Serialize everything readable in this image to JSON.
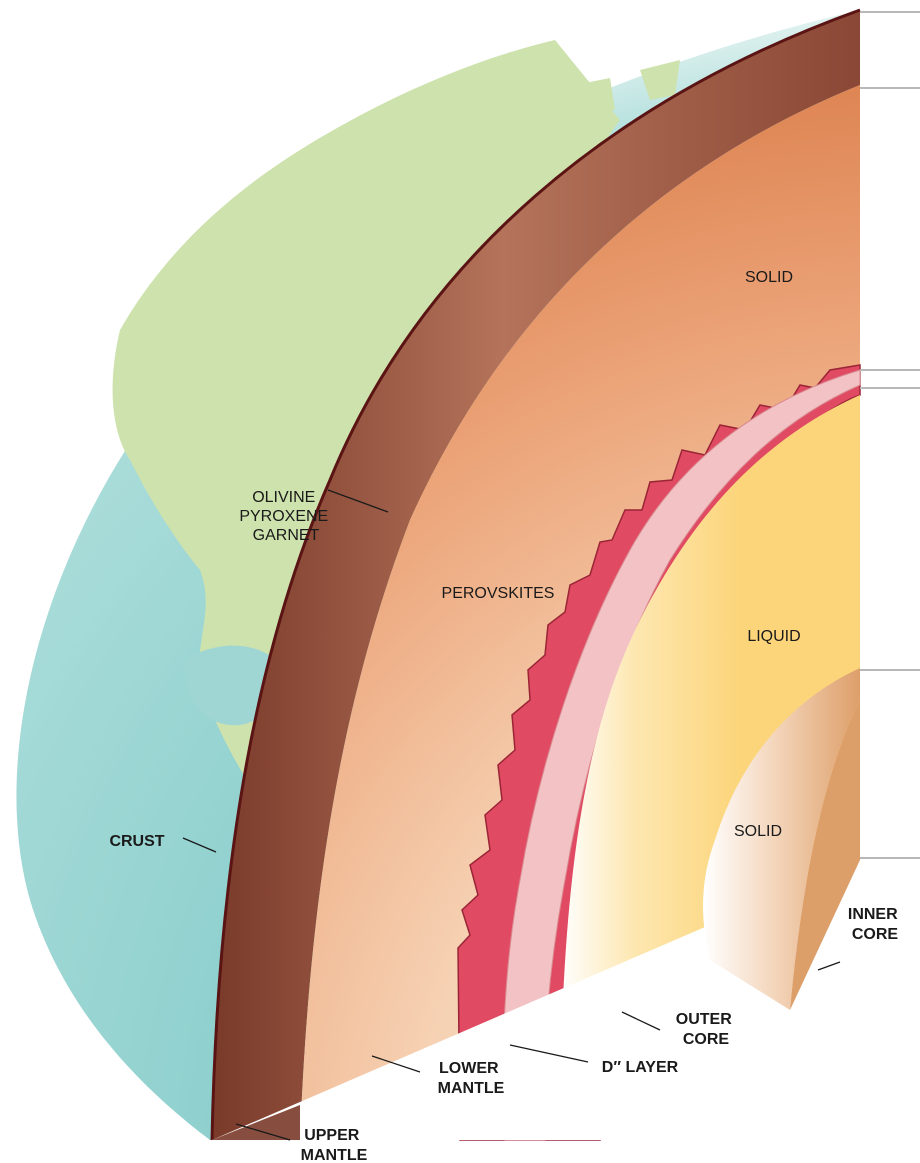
{
  "labels": {
    "crust": "CRUST",
    "upper_mantle": [
      "UPPER",
      "MANTLE"
    ],
    "lower_mantle": [
      "LOWER",
      "MANTLE"
    ],
    "d_layer": "D″ LAYER",
    "outer_core": [
      "OUTER",
      "CORE"
    ],
    "inner_core": [
      "INNER",
      "CORE"
    ],
    "upper_mantle_minerals": [
      "OLIVINE",
      "PYROXENE",
      "GARNET"
    ],
    "lower_mantle_minerals": "PEROVSKITES",
    "lower_mantle_state": "SOLID",
    "outer_core_state": "LIQUID",
    "inner_core_state": "SOLID"
  },
  "colors": {
    "ocean": "#9fd6d4",
    "land": "#cde2ad",
    "crust_line": "#5a1414",
    "upper_mantle": "#9c5a43",
    "lower_mantle": "#e48e5c",
    "d_layer": "#e04a62",
    "d_layer_pale": "#f2c2c4",
    "outer_core": "#fcd57a",
    "inner_core": "#eeb98a"
  }
}
